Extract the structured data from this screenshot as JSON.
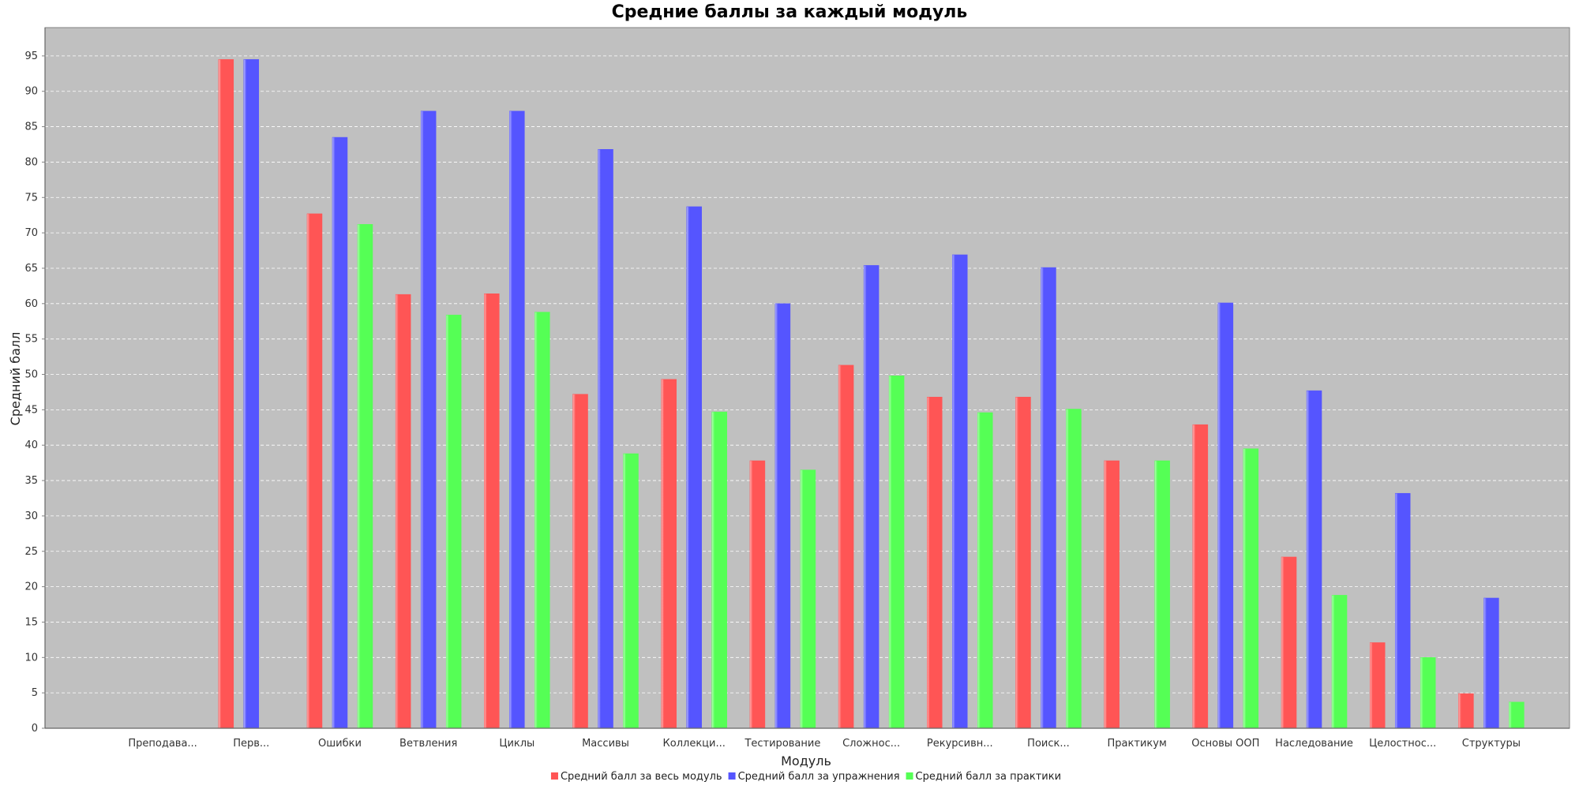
{
  "chart_data": {
    "type": "bar",
    "title": "Средние баллы за каждый модуль",
    "xlabel": "Модуль",
    "ylabel": "Средний балл",
    "ylim": [
      0,
      99
    ],
    "yticks": [
      0,
      5,
      10,
      15,
      20,
      25,
      30,
      35,
      40,
      45,
      50,
      55,
      60,
      65,
      70,
      75,
      80,
      85,
      90,
      95
    ],
    "grid": true,
    "legend_position": "bottom-center",
    "categories": [
      "Преподава...",
      "Перв...",
      "Ошибки",
      "Ветвления",
      "Циклы",
      "Массивы",
      "Коллекци...",
      "Тестирование",
      "Сложнос...",
      "Рекурсивн...",
      "Поиск...",
      "Практикум",
      "Основы ООП",
      "Наследование",
      "Целостнос...",
      "Структуры"
    ],
    "series": [
      {
        "name": "Средний балл за весь модуль",
        "color": "#ff5555",
        "values": [
          0,
          94.5,
          72.7,
          61.3,
          61.4,
          47.2,
          49.3,
          37.8,
          51.3,
          46.8,
          46.8,
          37.8,
          42.9,
          24.2,
          12.1,
          4.9
        ]
      },
      {
        "name": "Средний балл за упражнения",
        "color": "#5555ff",
        "values": [
          0,
          94.5,
          83.5,
          87.2,
          87.2,
          81.8,
          73.7,
          60.0,
          65.4,
          66.9,
          65.1,
          0,
          60.1,
          47.7,
          33.2,
          18.4
        ]
      },
      {
        "name": "Средний балл за практики",
        "color": "#55ff55",
        "values": [
          0,
          0,
          71.2,
          58.4,
          58.8,
          38.8,
          44.7,
          36.5,
          49.8,
          44.6,
          45.1,
          37.8,
          39.5,
          18.8,
          10.0,
          3.7
        ]
      }
    ]
  }
}
